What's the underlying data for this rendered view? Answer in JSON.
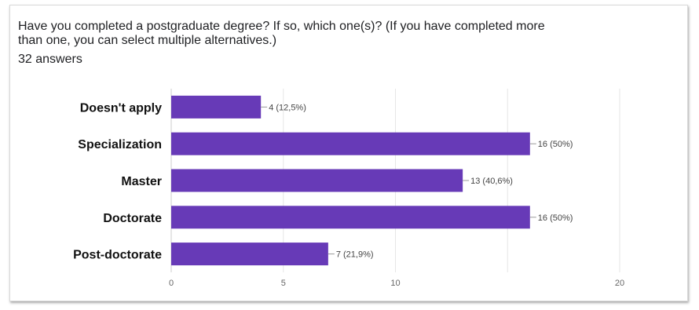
{
  "question": {
    "text_line1": "Have you completed a postgraduate degree? If so, which one(s)? (If you have completed more",
    "text_line2": "than one, you can select multiple alternatives.)",
    "answers_count": "32 answers"
  },
  "colors": {
    "bar": "#673ab7",
    "grid": "#e6e6e6",
    "axis": "#cccccc",
    "connector": "#999999"
  },
  "chart_data": {
    "type": "bar",
    "orientation": "horizontal",
    "categories": [
      "Doesn't apply",
      "Specialization",
      "Master",
      "Doctorate",
      "Post-doctorate"
    ],
    "values": [
      4,
      16,
      13,
      16,
      7
    ],
    "value_labels": [
      "4 (12,5%)",
      "16 (50%)",
      "13 (40,6%)",
      "16 (50%)",
      "7 (21,9%)"
    ],
    "xticks": [
      0,
      5,
      10,
      20
    ],
    "xlim": [
      0,
      20
    ],
    "grid": true
  }
}
